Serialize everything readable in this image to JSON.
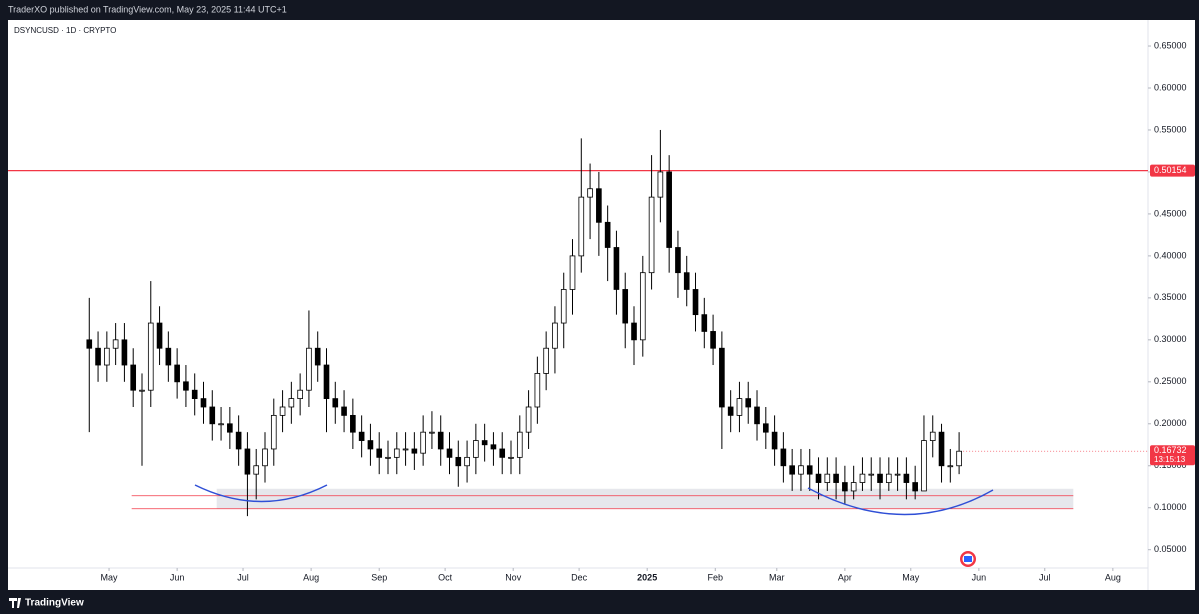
{
  "chart_data": {
    "type": "candlestick",
    "attribution": "TraderXO published on TradingView.com, May 23, 2025 11:44 UTC+1",
    "symbol": "DSYNCUSD · 1D · CRYPTO",
    "brand": "TradingView",
    "xlim": [
      -46,
      473
    ],
    "xticks": [
      {
        "value": 0,
        "label": "May"
      },
      {
        "value": 31,
        "label": "Jun"
      },
      {
        "value": 61,
        "label": "Jul"
      },
      {
        "value": 92,
        "label": "Aug"
      },
      {
        "value": 123,
        "label": "Sep"
      },
      {
        "value": 153,
        "label": "Oct"
      },
      {
        "value": 184,
        "label": "Nov"
      },
      {
        "value": 214,
        "label": "Dec"
      },
      {
        "value": 245,
        "label": "2025"
      },
      {
        "value": 276,
        "label": "Feb"
      },
      {
        "value": 304,
        "label": "Mar"
      },
      {
        "value": 335,
        "label": "Apr"
      },
      {
        "value": 365,
        "label": "May"
      },
      {
        "value": 396,
        "label": "Jun"
      },
      {
        "value": 426,
        "label": "Jul"
      },
      {
        "value": 457,
        "label": "Aug"
      }
    ],
    "ylim": [
      0.002,
      0.681
    ],
    "yticks": [
      {
        "value": 0.05,
        "label": "0.05000"
      },
      {
        "value": 0.1,
        "label": "0.10000"
      },
      {
        "value": 0.15,
        "label": "0.15000"
      },
      {
        "value": 0.2,
        "label": "0.20000"
      },
      {
        "value": 0.25,
        "label": "0.25000"
      },
      {
        "value": 0.3,
        "label": "0.30000"
      },
      {
        "value": 0.35,
        "label": "0.35000"
      },
      {
        "value": 0.4,
        "label": "0.40000"
      },
      {
        "value": 0.45,
        "label": "0.45000"
      },
      {
        "value": 0.5,
        "label": "0.50000"
      },
      {
        "value": 0.55,
        "label": "0.55000"
      },
      {
        "value": 0.6,
        "label": "0.60000"
      },
      {
        "value": 0.65,
        "label": "0.65000"
      }
    ],
    "grid": false,
    "up_color": "#ffffff",
    "down_color": "#000000",
    "hline": 0.50154,
    "hline_color": "#f23645",
    "last_price": 0.16732,
    "countdown": "13:15:13",
    "zone": {
      "x": [
        49,
        439
      ],
      "top": 0.1226,
      "mid": 0.1143,
      "bottom": 0.0988
    },
    "x": [
      -9,
      -5,
      -1,
      3,
      7,
      11,
      15,
      19,
      23,
      27,
      31,
      35,
      39,
      43,
      47,
      51,
      55,
      59,
      63,
      67,
      71,
      75,
      79,
      83,
      87,
      91,
      95,
      99,
      103,
      107,
      111,
      115,
      119,
      123,
      127,
      131,
      135,
      139,
      143,
      147,
      151,
      155,
      159,
      163,
      167,
      171,
      175,
      179,
      183,
      187,
      191,
      195,
      199,
      203,
      207,
      211,
      215,
      219,
      223,
      227,
      231,
      235,
      239,
      243,
      247,
      251,
      255,
      259,
      263,
      267,
      271,
      275,
      279,
      283,
      287,
      291,
      295,
      299,
      303,
      307,
      311,
      315,
      319,
      323,
      327,
      331,
      335,
      339,
      343,
      347,
      351,
      355,
      359,
      363,
      367,
      371,
      375,
      379,
      383,
      387
    ],
    "open": [
      0.3,
      0.29,
      0.27,
      0.29,
      0.3,
      0.27,
      0.24,
      0.24,
      0.32,
      0.29,
      0.27,
      0.25,
      0.24,
      0.23,
      0.22,
      0.2,
      0.2,
      0.19,
      0.17,
      0.14,
      0.15,
      0.17,
      0.21,
      0.22,
      0.23,
      0.24,
      0.29,
      0.27,
      0.23,
      0.22,
      0.21,
      0.19,
      0.18,
      0.17,
      0.16,
      0.16,
      0.17,
      0.17,
      0.165,
      0.19,
      0.19,
      0.17,
      0.16,
      0.15,
      0.16,
      0.18,
      0.175,
      0.17,
      0.16,
      0.16,
      0.19,
      0.22,
      0.26,
      0.29,
      0.32,
      0.36,
      0.4,
      0.47,
      0.48,
      0.44,
      0.41,
      0.36,
      0.32,
      0.3,
      0.38,
      0.47,
      0.5,
      0.41,
      0.38,
      0.36,
      0.33,
      0.31,
      0.29,
      0.22,
      0.21,
      0.23,
      0.22,
      0.2,
      0.19,
      0.17,
      0.15,
      0.14,
      0.15,
      0.14,
      0.13,
      0.14,
      0.13,
      0.12,
      0.13,
      0.14,
      0.14,
      0.13,
      0.14,
      0.14,
      0.13,
      0.12,
      0.18,
      0.19,
      0.15,
      0.15
    ],
    "high": [
      0.35,
      0.31,
      0.31,
      0.32,
      0.32,
      0.29,
      0.26,
      0.37,
      0.34,
      0.31,
      0.29,
      0.27,
      0.26,
      0.25,
      0.24,
      0.22,
      0.22,
      0.21,
      0.19,
      0.17,
      0.19,
      0.23,
      0.24,
      0.25,
      0.26,
      0.335,
      0.31,
      0.29,
      0.25,
      0.24,
      0.23,
      0.21,
      0.2,
      0.19,
      0.18,
      0.19,
      0.19,
      0.19,
      0.21,
      0.215,
      0.21,
      0.19,
      0.18,
      0.18,
      0.2,
      0.2,
      0.19,
      0.19,
      0.18,
      0.21,
      0.24,
      0.28,
      0.31,
      0.34,
      0.38,
      0.42,
      0.54,
      0.51,
      0.5,
      0.46,
      0.43,
      0.38,
      0.34,
      0.4,
      0.52,
      0.55,
      0.52,
      0.43,
      0.4,
      0.38,
      0.35,
      0.33,
      0.31,
      0.24,
      0.25,
      0.25,
      0.24,
      0.22,
      0.21,
      0.19,
      0.17,
      0.17,
      0.17,
      0.16,
      0.16,
      0.16,
      0.15,
      0.15,
      0.16,
      0.16,
      0.16,
      0.16,
      0.16,
      0.16,
      0.15,
      0.21,
      0.21,
      0.2,
      0.17,
      0.19
    ],
    "low": [
      0.19,
      0.25,
      0.25,
      0.27,
      0.25,
      0.22,
      0.15,
      0.22,
      0.27,
      0.25,
      0.23,
      0.22,
      0.21,
      0.2,
      0.18,
      0.18,
      0.17,
      0.15,
      0.09,
      0.11,
      0.13,
      0.15,
      0.19,
      0.2,
      0.21,
      0.22,
      0.25,
      0.19,
      0.2,
      0.19,
      0.17,
      0.16,
      0.15,
      0.14,
      0.14,
      0.14,
      0.15,
      0.145,
      0.15,
      0.17,
      0.15,
      0.14,
      0.125,
      0.13,
      0.14,
      0.155,
      0.15,
      0.14,
      0.14,
      0.14,
      0.17,
      0.2,
      0.24,
      0.26,
      0.29,
      0.33,
      0.38,
      0.42,
      0.4,
      0.37,
      0.33,
      0.29,
      0.27,
      0.28,
      0.36,
      0.44,
      0.38,
      0.35,
      0.34,
      0.31,
      0.29,
      0.27,
      0.17,
      0.19,
      0.19,
      0.2,
      0.18,
      0.17,
      0.15,
      0.13,
      0.12,
      0.12,
      0.12,
      0.11,
      0.12,
      0.11,
      0.105,
      0.11,
      0.12,
      0.12,
      0.11,
      0.12,
      0.12,
      0.11,
      0.11,
      0.12,
      0.16,
      0.13,
      0.13,
      0.14
    ],
    "close": [
      0.29,
      0.27,
      0.29,
      0.3,
      0.27,
      0.24,
      0.24,
      0.32,
      0.29,
      0.27,
      0.25,
      0.24,
      0.23,
      0.22,
      0.2,
      0.2,
      0.19,
      0.17,
      0.14,
      0.15,
      0.17,
      0.21,
      0.22,
      0.23,
      0.24,
      0.29,
      0.27,
      0.23,
      0.22,
      0.21,
      0.19,
      0.18,
      0.17,
      0.16,
      0.16,
      0.17,
      0.17,
      0.165,
      0.19,
      0.19,
      0.17,
      0.16,
      0.15,
      0.16,
      0.18,
      0.175,
      0.17,
      0.16,
      0.16,
      0.19,
      0.22,
      0.26,
      0.29,
      0.32,
      0.36,
      0.4,
      0.47,
      0.48,
      0.44,
      0.41,
      0.36,
      0.32,
      0.3,
      0.38,
      0.47,
      0.5,
      0.41,
      0.38,
      0.36,
      0.33,
      0.31,
      0.29,
      0.22,
      0.21,
      0.23,
      0.22,
      0.2,
      0.19,
      0.17,
      0.15,
      0.14,
      0.15,
      0.14,
      0.13,
      0.14,
      0.13,
      0.12,
      0.13,
      0.14,
      0.14,
      0.13,
      0.14,
      0.14,
      0.13,
      0.12,
      0.18,
      0.19,
      0.15,
      0.15,
      0.16732
    ]
  }
}
